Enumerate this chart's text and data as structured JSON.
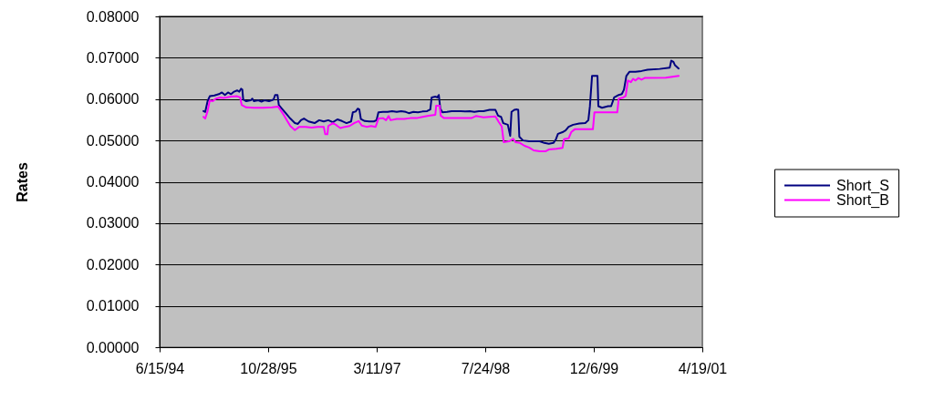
{
  "chart_data": {
    "type": "line",
    "ylabel": "Rates",
    "xlim": [
      "1994-06-15",
      "2001-04-19"
    ],
    "xticks": [
      {
        "value": "1994-06-15",
        "label": "6/15/94"
      },
      {
        "value": "1995-10-28",
        "label": "10/28/95"
      },
      {
        "value": "1997-03-11",
        "label": "3/11/97"
      },
      {
        "value": "1998-07-24",
        "label": "7/24/98"
      },
      {
        "value": "1999-12-06",
        "label": "12/6/99"
      },
      {
        "value": "2001-04-19",
        "label": "4/19/01"
      }
    ],
    "ylim": [
      0,
      0.08
    ],
    "yticks": [
      {
        "value": 0,
        "label": "0.00000"
      },
      {
        "value": 0.01,
        "label": "0.01000"
      },
      {
        "value": 0.02,
        "label": "0.02000"
      },
      {
        "value": 0.03,
        "label": "0.03000"
      },
      {
        "value": 0.04,
        "label": "0.04000"
      },
      {
        "value": 0.05,
        "label": "0.05000"
      },
      {
        "value": 0.06,
        "label": "0.06000"
      },
      {
        "value": 0.07,
        "label": "0.07000"
      },
      {
        "value": 0.08,
        "label": "0.08000"
      }
    ],
    "grid": "y",
    "legend": "right",
    "series": [
      {
        "name": "Short_S",
        "color": "#000080",
        "x": [
          "1995-01-03",
          "1995-01-11",
          "1995-01-22",
          "1995-02-01",
          "1995-02-22",
          "1995-03-15",
          "1995-03-29",
          "1995-04-12",
          "1995-04-26",
          "1995-05-10",
          "1995-05-24",
          "1995-06-07",
          "1995-06-17",
          "1995-06-25",
          "1995-07-01",
          "1995-07-05",
          "1995-07-19",
          "1995-08-09",
          "1995-08-16",
          "1995-08-23",
          "1995-09-13",
          "1995-09-27",
          "1995-10-11",
          "1995-11-01",
          "1995-11-22",
          "1995-11-29",
          "1995-12-10",
          "1995-12-16",
          "1995-12-27",
          "1996-01-17",
          "1996-02-07",
          "1996-02-28",
          "1996-03-13",
          "1996-03-27",
          "1996-04-10",
          "1996-05-01",
          "1996-05-29",
          "1996-06-19",
          "1996-07-10",
          "1996-07-31",
          "1996-08-21",
          "1996-09-11",
          "1996-10-02",
          "1996-10-23",
          "1996-11-13",
          "1996-11-21",
          "1996-12-04",
          "1996-12-14",
          "1996-12-21",
          "1996-12-28",
          "1997-01-15",
          "1997-02-05",
          "1997-02-26",
          "1997-03-10",
          "1997-03-19",
          "1997-04-09",
          "1997-04-30",
          "1997-05-21",
          "1997-06-11",
          "1997-07-02",
          "1997-07-23",
          "1997-08-06",
          "1997-08-27",
          "1997-09-17",
          "1997-10-08",
          "1997-10-29",
          "1997-11-13",
          "1997-11-19",
          "1997-12-06",
          "1997-12-15",
          "1997-12-22",
          "1997-12-29",
          "1998-01-08",
          "1998-01-29",
          "1998-02-19",
          "1998-03-12",
          "1998-04-02",
          "1998-04-23",
          "1998-05-14",
          "1998-06-04",
          "1998-06-25",
          "1998-07-16",
          "1998-08-13",
          "1998-09-09",
          "1998-09-21",
          "1998-10-05",
          "1998-10-15",
          "1998-11-05",
          "1998-11-16",
          "1998-11-22",
          "1998-12-05",
          "1998-12-17",
          "1998-12-23",
          "1998-12-28",
          "1999-01-14",
          "1999-02-11",
          "1999-03-11",
          "1999-04-01",
          "1999-04-22",
          "1999-05-13",
          "1999-06-03",
          "1999-06-14",
          "1999-06-24",
          "1999-07-15",
          "1999-07-29",
          "1999-08-12",
          "1999-09-02",
          "1999-09-30",
          "1999-10-28",
          "1999-11-11",
          "1999-11-18",
          "1999-11-28",
          "1999-12-23",
          "1999-12-27",
          "2000-01-13",
          "2000-02-10",
          "2000-02-24",
          "2000-03-09",
          "2000-03-30",
          "2000-04-13",
          "2000-04-23",
          "2000-05-04",
          "2000-05-18",
          "2000-06-15",
          "2000-07-13",
          "2000-08-10",
          "2000-10-05",
          "2000-11-20",
          "2000-11-27",
          "2000-12-07",
          "2000-12-14",
          "2000-12-31"
        ],
        "values": [
          0.0571,
          0.0569,
          0.0595,
          0.0607,
          0.0609,
          0.0612,
          0.0616,
          0.061,
          0.0616,
          0.0612,
          0.0618,
          0.0621,
          0.0618,
          0.0625,
          0.0623,
          0.0599,
          0.0595,
          0.0597,
          0.0601,
          0.0595,
          0.0597,
          0.0594,
          0.0597,
          0.0595,
          0.0599,
          0.061,
          0.061,
          0.0586,
          0.0579,
          0.0566,
          0.0553,
          0.0542,
          0.054,
          0.0549,
          0.0553,
          0.0546,
          0.0542,
          0.0549,
          0.0546,
          0.0549,
          0.0544,
          0.0551,
          0.0547,
          0.0542,
          0.0546,
          0.0568,
          0.057,
          0.0577,
          0.0575,
          0.0552,
          0.0547,
          0.0546,
          0.0546,
          0.0549,
          0.0568,
          0.0569,
          0.0569,
          0.0571,
          0.0569,
          0.0571,
          0.0569,
          0.0566,
          0.0569,
          0.0568,
          0.057,
          0.0571,
          0.0575,
          0.0604,
          0.0606,
          0.0604,
          0.061,
          0.0577,
          0.0568,
          0.0569,
          0.0571,
          0.0571,
          0.0571,
          0.057,
          0.0571,
          0.0569,
          0.0571,
          0.0571,
          0.0574,
          0.0574,
          0.056,
          0.0557,
          0.0542,
          0.0538,
          0.0511,
          0.0569,
          0.0574,
          0.0575,
          0.0574,
          0.0509,
          0.05,
          0.0498,
          0.0498,
          0.0498,
          0.0494,
          0.0492,
          0.0494,
          0.0502,
          0.0516,
          0.052,
          0.0524,
          0.0533,
          0.0538,
          0.0541,
          0.0542,
          0.0549,
          0.0582,
          0.0656,
          0.0656,
          0.0583,
          0.0579,
          0.0583,
          0.0583,
          0.0604,
          0.061,
          0.0612,
          0.0623,
          0.0656,
          0.0666,
          0.0666,
          0.0668,
          0.0671,
          0.0673,
          0.0676,
          0.0693,
          0.069,
          0.0682,
          0.0674
        ]
      },
      {
        "name": "Short_B",
        "color": "#ff00ff",
        "x": [
          "1995-01-03",
          "1995-01-11",
          "1995-01-22",
          "1995-02-01",
          "1995-02-15",
          "1995-03-01",
          "1995-03-22",
          "1995-04-05",
          "1995-04-19",
          "1995-05-10",
          "1995-06-07",
          "1995-06-21",
          "1995-06-28",
          "1995-07-19",
          "1995-08-23",
          "1995-10-04",
          "1995-11-15",
          "1995-12-13",
          "1995-12-27",
          "1996-01-10",
          "1996-01-24",
          "1996-02-07",
          "1996-02-28",
          "1996-03-20",
          "1996-04-17",
          "1996-05-15",
          "1996-06-12",
          "1996-07-10",
          "1996-07-17",
          "1996-07-27",
          "1996-07-31",
          "1996-08-21",
          "1996-09-04",
          "1996-09-11",
          "1996-09-24",
          "1996-10-16",
          "1996-11-06",
          "1996-11-27",
          "1996-12-18",
          "1997-01-01",
          "1997-01-23",
          "1997-02-13",
          "1997-03-06",
          "1997-03-19",
          "1997-04-09",
          "1997-04-23",
          "1997-05-05",
          "1997-05-14",
          "1997-06-11",
          "1997-07-16",
          "1997-08-13",
          "1997-09-11",
          "1997-10-08",
          "1997-11-05",
          "1997-12-06",
          "1997-12-10",
          "1997-12-26",
          "1997-12-31",
          "1998-01-15",
          "1998-02-26",
          "1998-04-09",
          "1998-05-21",
          "1998-06-11",
          "1998-07-16",
          "1998-09-09",
          "1998-09-24",
          "1998-10-08",
          "1998-10-17",
          "1998-11-11",
          "1998-11-30",
          "1998-12-10",
          "1998-12-31",
          "1999-01-21",
          "1999-02-11",
          "1999-03-04",
          "1999-04-01",
          "1999-04-29",
          "1999-05-13",
          "1999-06-17",
          "1999-07-15",
          "1999-07-22",
          "1999-08-12",
          "1999-08-24",
          "1999-09-09",
          "1999-10-21",
          "1999-12-02",
          "1999-12-09",
          "2000-01-13",
          "2000-03-23",
          "2000-03-30",
          "2000-04-20",
          "2000-05-01",
          "2000-05-11",
          "2000-05-25",
          "2000-06-04",
          "2000-06-15",
          "2000-06-29",
          "2000-07-13",
          "2000-07-27",
          "2000-11-02",
          "2000-12-31"
        ],
        "values": [
          0.0557,
          0.0553,
          0.0571,
          0.0597,
          0.0595,
          0.0601,
          0.0604,
          0.0603,
          0.0604,
          0.0606,
          0.0607,
          0.0604,
          0.0586,
          0.058,
          0.0579,
          0.0579,
          0.058,
          0.0582,
          0.0571,
          0.056,
          0.0547,
          0.0535,
          0.0525,
          0.0533,
          0.0533,
          0.0531,
          0.0533,
          0.0533,
          0.0515,
          0.0515,
          0.0535,
          0.0542,
          0.0538,
          0.0535,
          0.053,
          0.0533,
          0.0535,
          0.0542,
          0.0547,
          0.0536,
          0.0533,
          0.0535,
          0.0533,
          0.0553,
          0.0554,
          0.0549,
          0.0559,
          0.0549,
          0.0552,
          0.0552,
          0.0554,
          0.0554,
          0.0557,
          0.056,
          0.0562,
          0.0584,
          0.0584,
          0.056,
          0.0554,
          0.0554,
          0.0554,
          0.0554,
          0.0559,
          0.0556,
          0.0558,
          0.0545,
          0.0534,
          0.0496,
          0.0498,
          0.0504,
          0.0496,
          0.0494,
          0.0487,
          0.0483,
          0.0476,
          0.0474,
          0.0474,
          0.0478,
          0.048,
          0.0482,
          0.0503,
          0.0505,
          0.052,
          0.0527,
          0.0527,
          0.0527,
          0.0568,
          0.0568,
          0.0568,
          0.0601,
          0.0604,
          0.0608,
          0.0645,
          0.0641,
          0.0649,
          0.0645,
          0.0651,
          0.0647,
          0.0651,
          0.0652,
          0.0656
        ]
      }
    ]
  }
}
